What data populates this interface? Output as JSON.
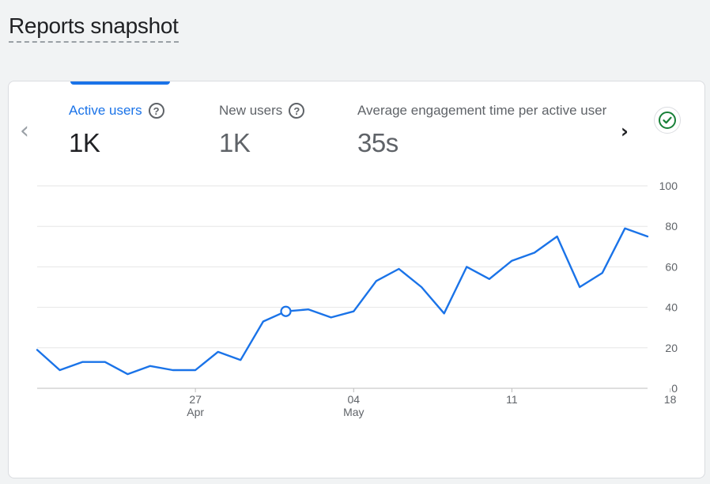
{
  "page": {
    "title": "Reports snapshot"
  },
  "metrics": [
    {
      "label": "Active users",
      "value": "1K",
      "active": true
    },
    {
      "label": "New users",
      "value": "1K",
      "active": false
    },
    {
      "label": "Average engagement time per active user",
      "value": "35s",
      "active": false
    }
  ],
  "icons": {
    "help": "?",
    "prev": "‹",
    "next": "›",
    "status": "check-circle-icon"
  },
  "colors": {
    "accent": "#1a73e8",
    "success": "#188038",
    "grid": "#e0e0e0"
  },
  "chart_data": {
    "type": "line",
    "title": "",
    "xlabel": "",
    "ylabel": "",
    "ylim": [
      0,
      100
    ],
    "yticks": [
      "0",
      "20",
      "40",
      "60",
      "80",
      "100"
    ],
    "xticks": [
      {
        "day": 7,
        "label": "27",
        "sub": "Apr"
      },
      {
        "day": 14,
        "label": "04",
        "sub": "May"
      },
      {
        "day": 21,
        "label": "11",
        "sub": ""
      },
      {
        "day": 28,
        "label": "18",
        "sub": ""
      }
    ],
    "grid": true,
    "y_axis_position": "right",
    "highlight_index": 11,
    "series": [
      {
        "color": "#1a73e8",
        "values": [
          19,
          9,
          13,
          13,
          7,
          11,
          9,
          9,
          18,
          14,
          33,
          38,
          39,
          35,
          38,
          53,
          59,
          50,
          37,
          60,
          54,
          63,
          67,
          75,
          50,
          57,
          79,
          75
        ]
      }
    ]
  }
}
